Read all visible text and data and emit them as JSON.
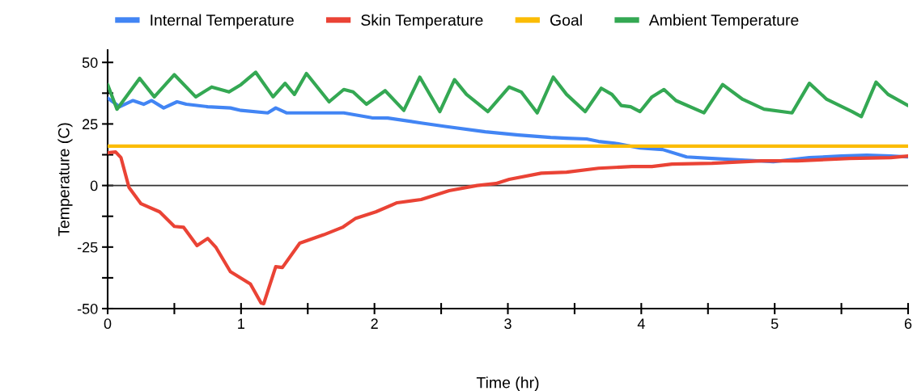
{
  "chart_data": {
    "type": "line",
    "xlabel": "Time (hr)",
    "ylabel": "Temperature (C)",
    "xlim": [
      0,
      6
    ],
    "ylim": [
      -50,
      55
    ],
    "xticks": [
      0,
      {
        "value": 0.5,
        "label": null
      },
      1,
      {
        "value": 1.5,
        "label": null
      },
      2,
      {
        "value": 2.5,
        "label": null
      },
      3,
      {
        "value": 3.5,
        "label": null
      },
      4,
      {
        "value": 4.5,
        "label": null
      },
      5,
      {
        "value": 5.5,
        "label": null
      },
      6
    ],
    "yticks": [
      -50,
      {
        "value": -37.5,
        "label": null
      },
      -25,
      {
        "value": -12.5,
        "label": null
      },
      0,
      {
        "value": 12.5,
        "label": null
      },
      25,
      {
        "value": 37.5,
        "label": null
      },
      50
    ],
    "grid": false,
    "legend": "top",
    "marker": "none",
    "line_style": "solid",
    "ref_lines": [
      {
        "axis": "y",
        "value": 0,
        "color": "#333333"
      }
    ],
    "series": [
      {
        "name": "Internal Temperature",
        "color": "#4285f4",
        "x": [
          0,
          0.09,
          0.19,
          0.27,
          0.33,
          0.42,
          0.52,
          0.59,
          0.75,
          0.92,
          1.0,
          1.2,
          1.26,
          1.34,
          1.5,
          1.77,
          1.98,
          2.1,
          2.35,
          2.53,
          2.83,
          3.08,
          3.32,
          3.44,
          3.59,
          3.68,
          3.8,
          3.99,
          4.16,
          4.34,
          4.53,
          4.78,
          4.99,
          5.26,
          5.5,
          5.69,
          5.87,
          6
        ],
        "values": [
          35.5,
          32,
          34.5,
          33,
          34.5,
          31.5,
          34,
          33,
          32,
          31.5,
          30.5,
          29.5,
          31.5,
          29.5,
          29.5,
          29.5,
          27.5,
          27.4,
          25.4,
          24,
          21.8,
          20.5,
          19.5,
          19.2,
          18.9,
          17.9,
          17.2,
          15.2,
          14.6,
          11.6,
          11,
          10.3,
          9.7,
          11.3,
          12,
          12.3,
          12,
          11.6
        ]
      },
      {
        "name": "Skin Temperature",
        "color": "#ea4335",
        "x": [
          0,
          0.06,
          0.1,
          0.16,
          0.25,
          0.39,
          0.5,
          0.57,
          0.67,
          0.75,
          0.81,
          0.92,
          1.07,
          1.15,
          1.17,
          1.26,
          1.31,
          1.44,
          1.62,
          1.76,
          1.86,
          2.01,
          2.17,
          2.35,
          2.56,
          2.77,
          2.91,
          3.01,
          3.25,
          3.44,
          3.68,
          3.93,
          4.08,
          4.23,
          4.53,
          4.9,
          5.17,
          5.56,
          5.87,
          6
        ],
        "values": [
          13.3,
          13.6,
          11.3,
          -0.8,
          -7.4,
          -10.7,
          -16.6,
          -17,
          -24.4,
          -21.5,
          -25,
          -35,
          -40,
          -47.7,
          -48,
          -33,
          -33.3,
          -23.4,
          -20,
          -17,
          -13.3,
          -10.7,
          -7,
          -5.7,
          -2.1,
          0,
          0.8,
          2.5,
          5,
          5.4,
          7,
          7.7,
          7.7,
          8.7,
          9,
          10,
          10,
          11,
          11.3,
          12
        ]
      },
      {
        "name": "Goal",
        "color": "#fbbc04",
        "x": [
          0,
          6
        ],
        "values": [
          16,
          16
        ]
      },
      {
        "name": "Ambient Temperature",
        "color": "#34a853",
        "x": [
          0,
          0.07,
          0.24,
          0.35,
          0.5,
          0.66,
          0.78,
          0.91,
          1.0,
          1.11,
          1.24,
          1.33,
          1.4,
          1.49,
          1.66,
          1.77,
          1.84,
          1.94,
          2.08,
          2.22,
          2.34,
          2.49,
          2.6,
          2.69,
          2.85,
          3.01,
          3.1,
          3.22,
          3.34,
          3.44,
          3.58,
          3.7,
          3.78,
          3.85,
          3.92,
          3.99,
          4.08,
          4.17,
          4.26,
          4.47,
          4.61,
          4.76,
          4.92,
          5.13,
          5.26,
          5.39,
          5.58,
          5.65,
          5.76,
          5.85,
          6
        ],
        "values": [
          41,
          31,
          43.5,
          36,
          45,
          36,
          40,
          38,
          41,
          46,
          36,
          41.5,
          37,
          45.5,
          34,
          39,
          38,
          33,
          38.5,
          30.5,
          44,
          30,
          43,
          37,
          30,
          40,
          38,
          29.5,
          44,
          37,
          30,
          39.5,
          37,
          32.5,
          32,
          30,
          36,
          39,
          34.5,
          29.5,
          41,
          35,
          31,
          29.5,
          41.5,
          35,
          30,
          28,
          42,
          37,
          32.5
        ]
      }
    ]
  }
}
